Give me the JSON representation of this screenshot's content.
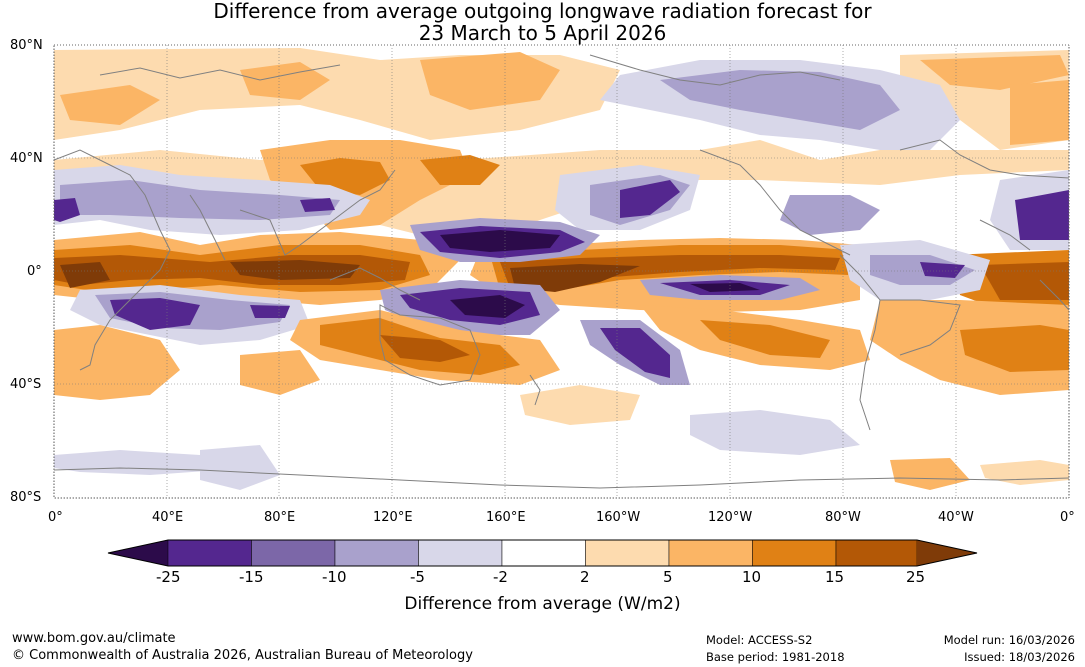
{
  "title": {
    "line1": "Difference from average outgoing longwave radiation forecast for",
    "line2": "23 March to 5 April 2026"
  },
  "map": {
    "lat_labels": [
      "80°N",
      "40°N",
      "0°",
      "40°S",
      "80°S"
    ],
    "lon_labels": [
      "0°",
      "40°E",
      "80°E",
      "120°E",
      "160°E",
      "160°W",
      "120°W",
      "80°W",
      "40°W",
      "0°"
    ]
  },
  "legend": {
    "title": "Difference from average (W/m2)",
    "ticks": [
      "-25",
      "-15",
      "-10",
      "-5",
      "-2",
      "2",
      "5",
      "10",
      "15",
      "25"
    ],
    "colors": [
      "#2c0b4a",
      "#54278f",
      "#7c67a8",
      "#a9a1cc",
      "#d8d7e9",
      "#ffffff",
      "#fddbaf",
      "#fbb565",
      "#e08115",
      "#b35806",
      "#7f3b08"
    ]
  },
  "footer": {
    "website": "www.bom.gov.au/climate",
    "copyright": "© Commonwealth of Australia 2026, Australian Bureau of Meteorology",
    "model": "Model: ACCESS-S2",
    "base_period": "Base period: 1981-2018",
    "model_run": "Model run: 16/03/2026",
    "issued": "Issued: 18/03/2026"
  }
}
